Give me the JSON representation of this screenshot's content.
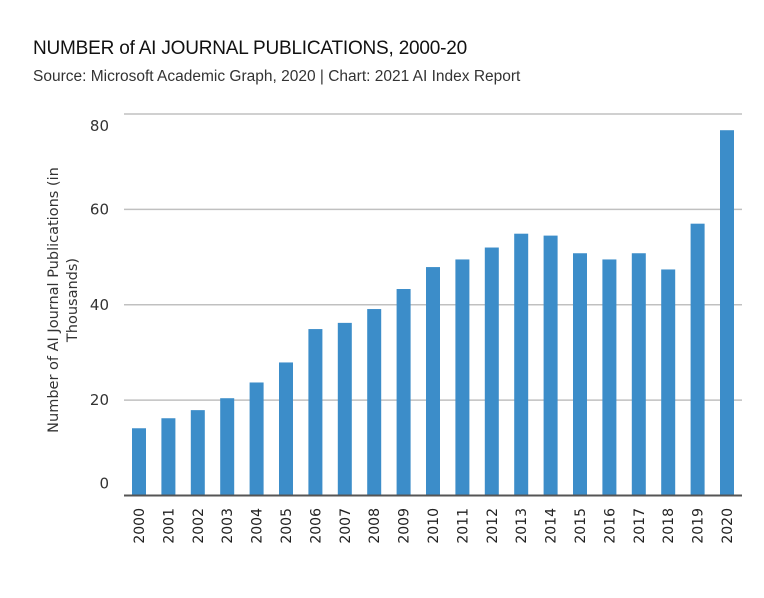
{
  "chart_data": {
    "type": "bar",
    "title": "NUMBER of AI JOURNAL PUBLICATIONS, 2000-20",
    "subtitle": "Source: Microsoft Academic Graph, 2020 | Chart: 2021 AI Index Report",
    "xlabel": "",
    "ylabel_lines": [
      "Number of AI Journal Publications (in",
      "Thousands)"
    ],
    "categories": [
      "2000",
      "2001",
      "2002",
      "2003",
      "2004",
      "2005",
      "2006",
      "2007",
      "2008",
      "2009",
      "2010",
      "2011",
      "2012",
      "2013",
      "2014",
      "2015",
      "2016",
      "2017",
      "2018",
      "2019",
      "2020"
    ],
    "values": [
      14.1,
      16.2,
      17.9,
      20.4,
      23.7,
      27.9,
      34.9,
      36.2,
      39.1,
      43.3,
      47.9,
      49.5,
      52.0,
      54.9,
      54.5,
      50.8,
      49.5,
      50.8,
      47.4,
      57.0,
      76.6
    ],
    "ylim": [
      0,
      80
    ],
    "yticks": [
      "0",
      "20",
      "40",
      "60",
      "80"
    ],
    "grid": true,
    "legend": "none",
    "colors": {
      "bar": "#3c8dc9",
      "grid": "#c0c0c0",
      "axis": "#555555"
    }
  }
}
